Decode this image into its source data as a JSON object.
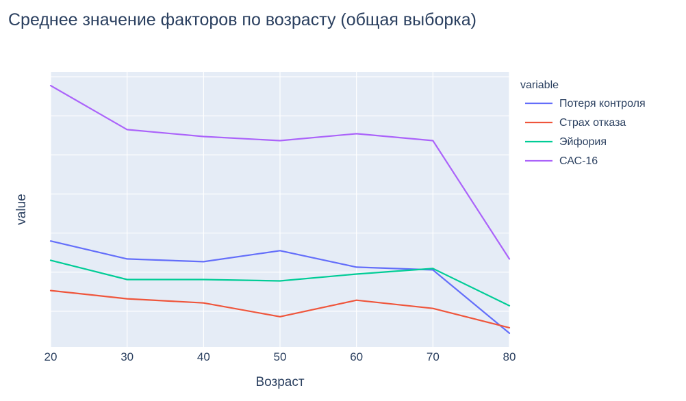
{
  "chart_data": {
    "type": "line",
    "title": "Среднее значение факторов по возрасту (общая выборка)",
    "xlabel": "Возраст",
    "ylabel": "value",
    "x": [
      20,
      30,
      40,
      50,
      60,
      70,
      80
    ],
    "xlim": [
      20,
      80
    ],
    "ylim": [
      0,
      100
    ],
    "y_ticks": [
      13,
      27.2,
      41.4,
      55.6,
      69.8,
      84,
      98.2
    ],
    "y_tick_labels_visible": false,
    "grid": true,
    "legend": {
      "title": "variable",
      "placement": "top-right"
    },
    "series": [
      {
        "name": "Потеря контроля",
        "color": "#636efa",
        "values": [
          38.5,
          32,
          31,
          35,
          29,
          28,
          5
        ]
      },
      {
        "name": "Страх отказа",
        "color": "#ef553b",
        "values": [
          20.5,
          17.5,
          16,
          11,
          17,
          14,
          7
        ]
      },
      {
        "name": "Эйфория",
        "color": "#00cc96",
        "values": [
          31.5,
          24.5,
          24.5,
          24,
          26.5,
          28.5,
          15
        ]
      },
      {
        "name": "САС-16",
        "color": "#ab63fa",
        "values": [
          95,
          79,
          76.5,
          75,
          77.5,
          75,
          32
        ]
      }
    ]
  },
  "colors": {
    "plot_background": "#e5ecf6",
    "grid": "#ffffff",
    "text": "#2a3f5f"
  }
}
